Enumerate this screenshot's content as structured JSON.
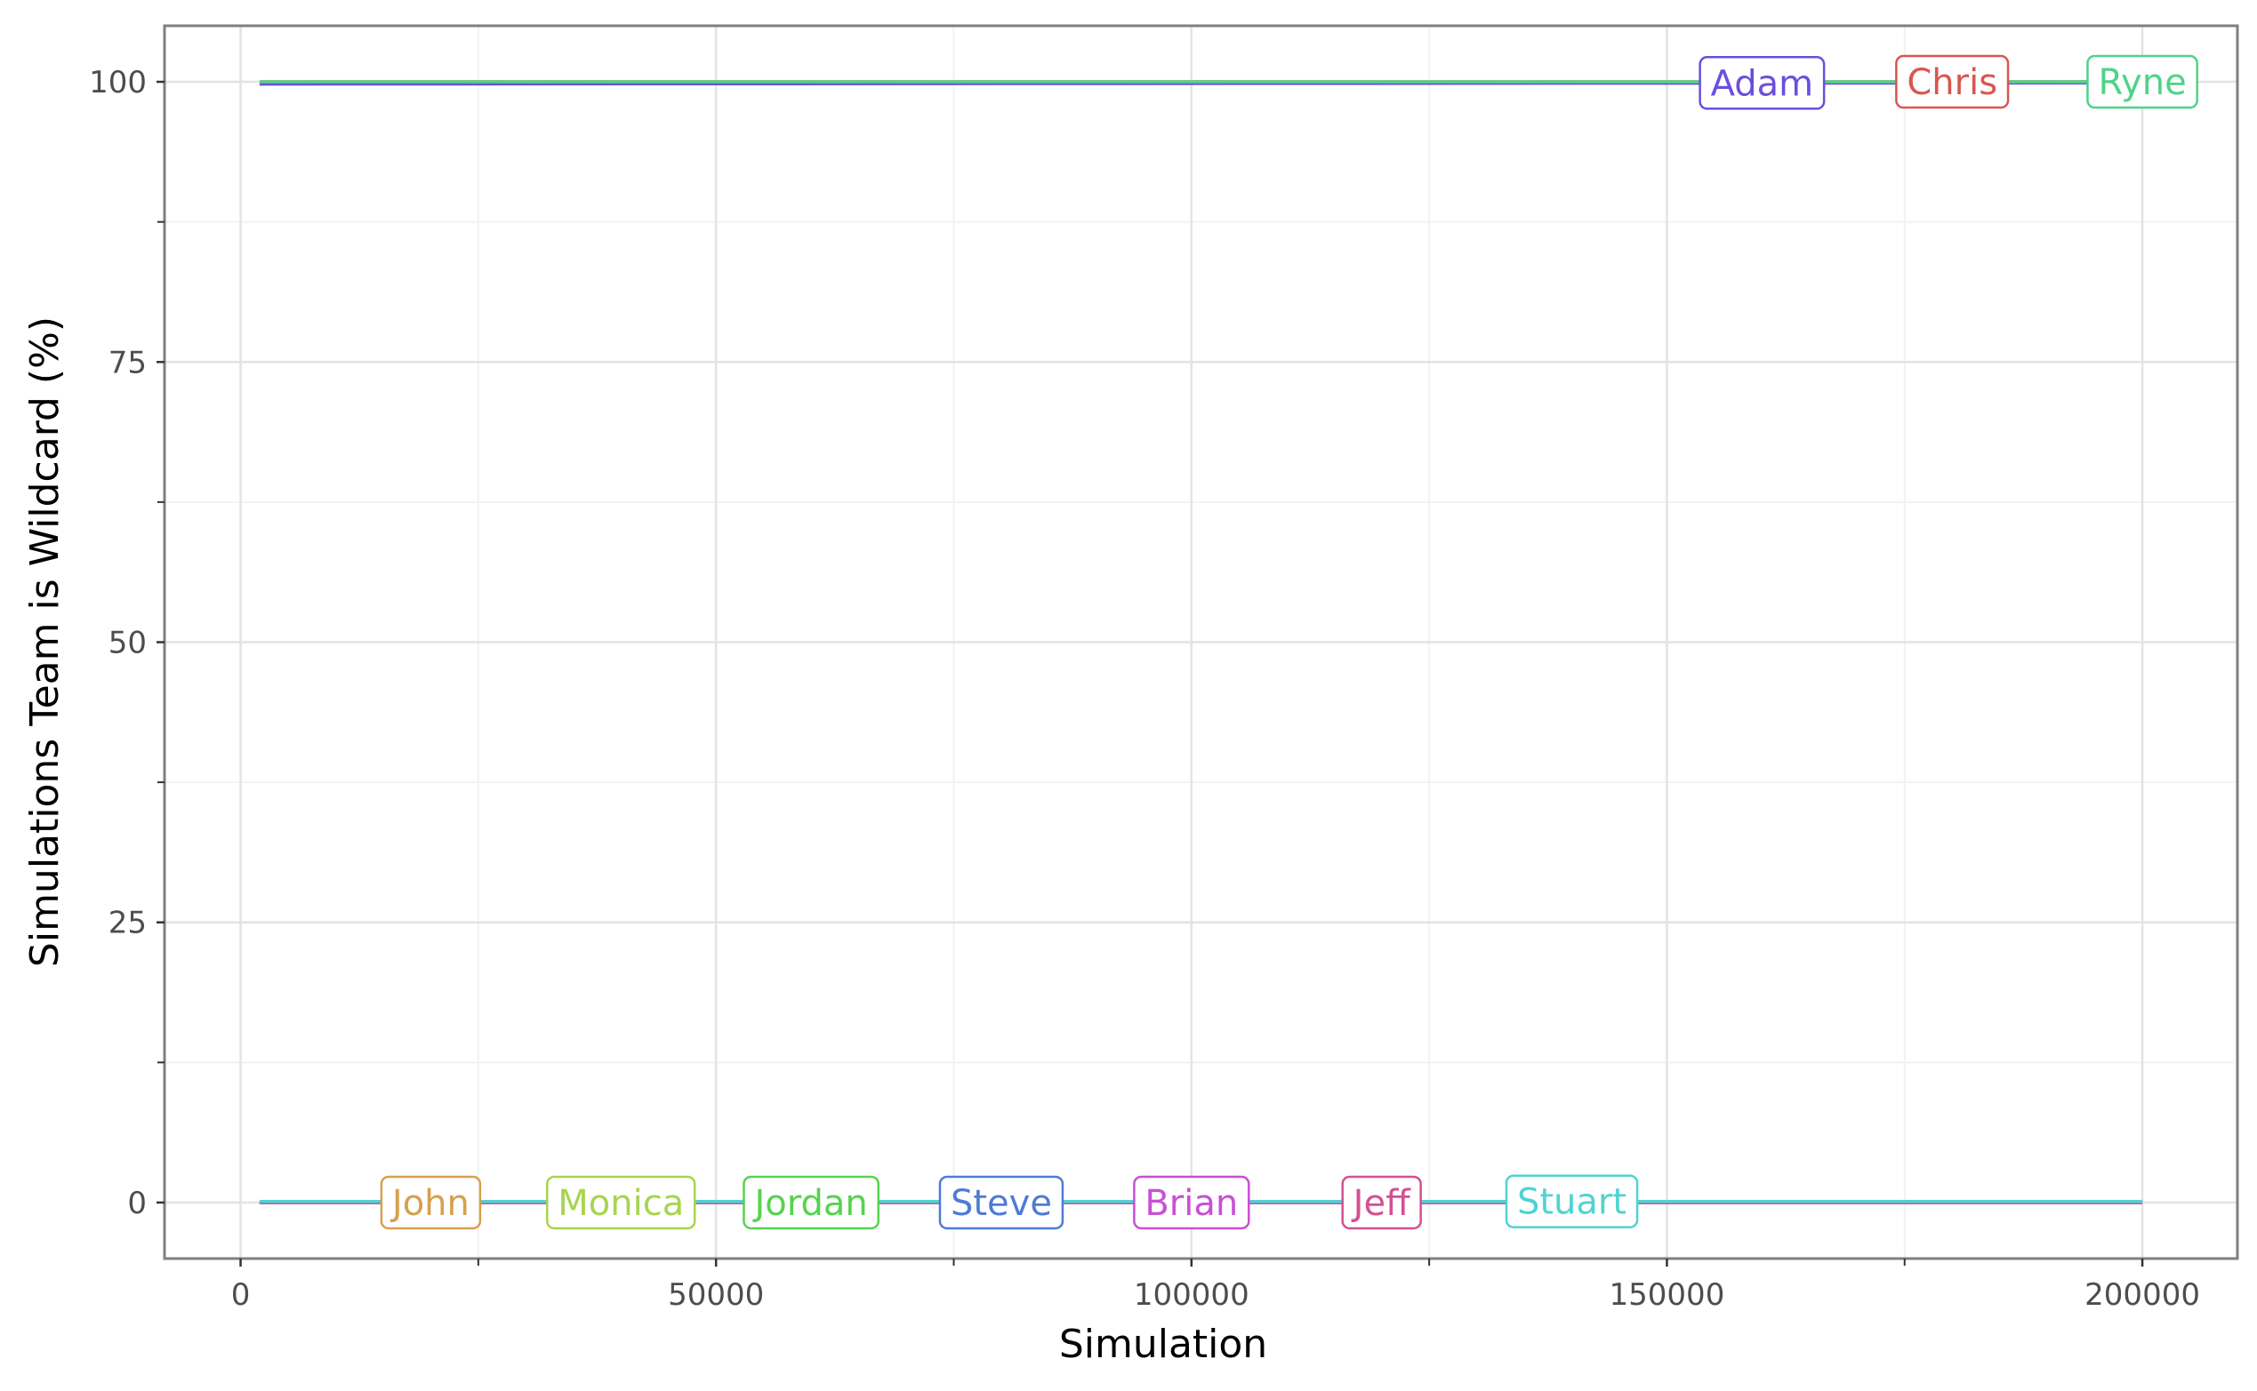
{
  "chart_data": {
    "type": "line",
    "title": "",
    "xlabel": "Simulation",
    "ylabel": "Simulations Team is Wildcard (%)",
    "xlim": [
      -8000,
      210000
    ],
    "ylim": [
      -5,
      105
    ],
    "xticks": [
      0,
      50000,
      100000,
      150000,
      200000
    ],
    "xtick_labels": [
      "0",
      "50000",
      "100000",
      "150000",
      "200000"
    ],
    "yticks": [
      0,
      25,
      50,
      75,
      100
    ],
    "ytick_labels": [
      "0",
      "25",
      "50",
      "75",
      "100"
    ],
    "grid": true,
    "legend": "none (direct labels on lines)",
    "series": [
      {
        "name": "Adam",
        "color": "#6a4fdc",
        "x": [
          2000,
          200000
        ],
        "y": [
          99.8,
          99.9
        ],
        "label_x": 160000
      },
      {
        "name": "Chris",
        "color": "#d9564f",
        "x": [
          2000,
          200000
        ],
        "y": [
          100,
          100
        ],
        "label_x": 180000
      },
      {
        "name": "Ryne",
        "color": "#4fd389",
        "x": [
          2000,
          200000
        ],
        "y": [
          100,
          100
        ],
        "label_x": 200000
      },
      {
        "name": "John",
        "color": "#d7a04f",
        "x": [
          2000,
          200000
        ],
        "y": [
          0,
          0
        ],
        "label_x": 20000
      },
      {
        "name": "Monica",
        "color": "#a8d44f",
        "x": [
          2000,
          200000
        ],
        "y": [
          0,
          0
        ],
        "label_x": 40000
      },
      {
        "name": "Jordan",
        "color": "#56d34f",
        "x": [
          2000,
          200000
        ],
        "y": [
          0,
          0
        ],
        "label_x": 60000
      },
      {
        "name": "Steve",
        "color": "#4f7bd6",
        "x": [
          2000,
          200000
        ],
        "y": [
          0,
          0
        ],
        "label_x": 80000
      },
      {
        "name": "Brian",
        "color": "#c94fd6",
        "x": [
          2000,
          200000
        ],
        "y": [
          0,
          0
        ],
        "label_x": 100000
      },
      {
        "name": "Jeff",
        "color": "#d64f93",
        "x": [
          2000,
          200000
        ],
        "y": [
          0,
          0
        ],
        "label_x": 120000
      },
      {
        "name": "Stuart",
        "color": "#4fd3d3",
        "x": [
          2000,
          200000
        ],
        "y": [
          0.1,
          0.1
        ],
        "label_x": 140000
      }
    ]
  }
}
